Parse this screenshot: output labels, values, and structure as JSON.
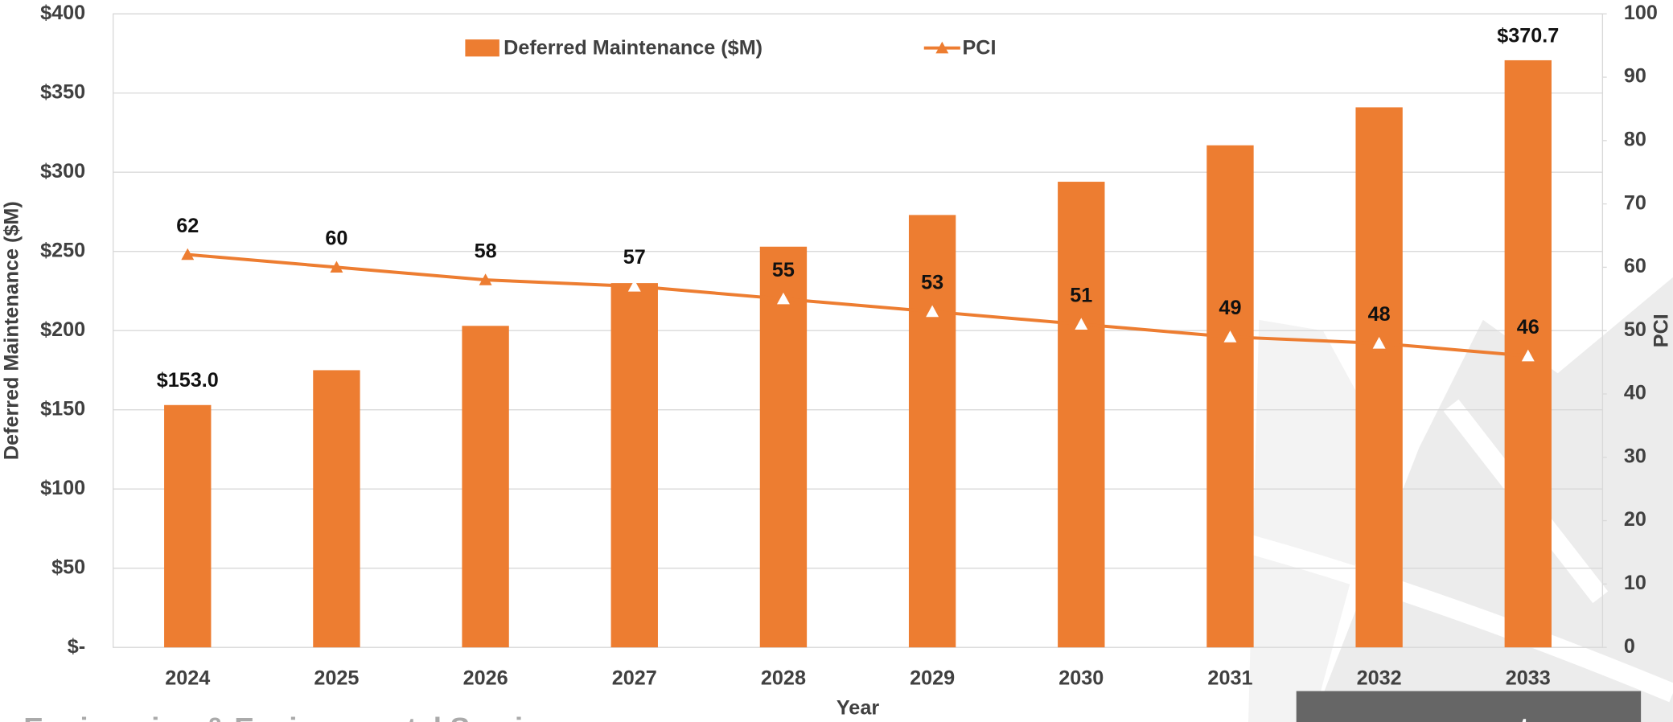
{
  "chart_data": {
    "type": "bar_line",
    "categories": [
      "2024",
      "2025",
      "2026",
      "2027",
      "2028",
      "2029",
      "2030",
      "2031",
      "2032",
      "2033"
    ],
    "xlabel": "Year",
    "ylabel": "Deferred Maintenance ($M)",
    "y2label": "PCI",
    "series": [
      {
        "name": "Deferred Maintenance ($M)",
        "type": "bar",
        "color": "#ed7d31",
        "values": [
          153.0,
          175,
          203,
          230,
          253,
          273,
          294,
          317,
          341,
          370.7
        ],
        "value_labels": [
          "$153.0",
          null,
          null,
          null,
          null,
          null,
          null,
          null,
          null,
          "$370.7"
        ]
      },
      {
        "name": "PCI",
        "type": "line",
        "axis": "y2",
        "color": "#ed7d31",
        "values": [
          62,
          60,
          58,
          57,
          55,
          53,
          51,
          49,
          48,
          46
        ]
      }
    ],
    "ylim": [
      0,
      400
    ],
    "yticks": [
      {
        "value": 0,
        "label": "$-"
      },
      {
        "value": 50,
        "label": "$50"
      },
      {
        "value": 100,
        "label": "$100"
      },
      {
        "value": 150,
        "label": "$150"
      },
      {
        "value": 200,
        "label": "$200"
      },
      {
        "value": 250,
        "label": "$250"
      },
      {
        "value": 300,
        "label": "$300"
      },
      {
        "value": 350,
        "label": "$350"
      },
      {
        "value": 400,
        "label": "$400"
      }
    ],
    "y2lim": [
      0,
      100
    ],
    "y2ticks": [
      0,
      10,
      20,
      30,
      40,
      50,
      60,
      70,
      80,
      90,
      100
    ],
    "grid": true,
    "legend": "top",
    "footer_left": "Engineering & Environmental Services",
    "footer_right": "www.ncenet.com"
  }
}
